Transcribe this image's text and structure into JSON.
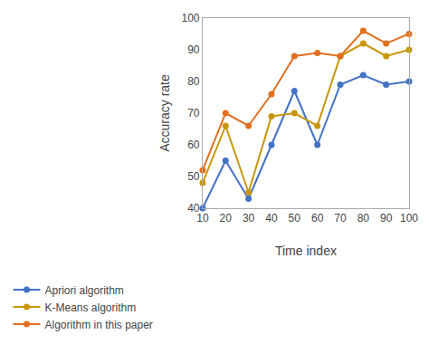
{
  "chart_data": {
    "type": "line",
    "x": [
      10,
      20,
      30,
      40,
      50,
      60,
      70,
      80,
      90,
      100
    ],
    "series": [
      {
        "name": "Apriori algorithm",
        "color": "#4472c4",
        "values": [
          40,
          55,
          43,
          60,
          77,
          60,
          79,
          82,
          79,
          80
        ]
      },
      {
        "name": "K-Means algorithm",
        "color": "#c8960a",
        "values": [
          48,
          66,
          45,
          69,
          70,
          66,
          88,
          92,
          88,
          90
        ]
      },
      {
        "name": "Algorithm in this paper",
        "color": "#e07020",
        "values": [
          52,
          70,
          66,
          76,
          88,
          89,
          88,
          96,
          92,
          95
        ]
      }
    ],
    "xlabel": "Time index",
    "ylabel": "Accuracy rate",
    "xlim": [
      10,
      100
    ],
    "ylim": [
      40,
      100
    ],
    "xticks": [
      10,
      20,
      30,
      40,
      50,
      60,
      70,
      80,
      90,
      100
    ],
    "yticks": [
      40,
      50,
      60,
      70,
      80,
      90,
      100
    ],
    "grid": false,
    "legend": "bottom",
    "marker": "circle"
  }
}
